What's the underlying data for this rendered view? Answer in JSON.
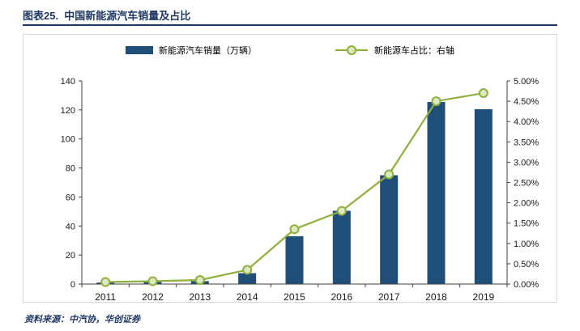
{
  "header": {
    "title": "图表25.  中国新能源汽车销量及占比"
  },
  "legend": {
    "items": [
      {
        "label": "新能源汽车销量（万辆）",
        "type": "bar",
        "color": "#1F4E79"
      },
      {
        "label": "新能源车占比：右轴",
        "type": "line",
        "color": "#8FB03A"
      }
    ]
  },
  "chart_data": {
    "type": "bar",
    "subtype": "bar+line-dual-axis",
    "categories": [
      "2011",
      "2012",
      "2013",
      "2014",
      "2015",
      "2016",
      "2017",
      "2018",
      "2019"
    ],
    "series": [
      {
        "name": "新能源汽车销量（万辆）",
        "type": "bar",
        "axis": "left",
        "color": "#1F4E79",
        "values": [
          1,
          1.5,
          2,
          7.5,
          33,
          50.5,
          75,
          125.5,
          120.5
        ]
      },
      {
        "name": "新能源车占比：右轴",
        "type": "line",
        "axis": "right",
        "color": "#8FB03A",
        "values": [
          0.05,
          0.07,
          0.1,
          0.35,
          1.35,
          1.8,
          2.7,
          4.5,
          4.7
        ]
      }
    ],
    "left_axis": {
      "min": 0,
      "max": 140,
      "step": 20
    },
    "right_axis": {
      "min": 0,
      "max": 5,
      "step": 0.5,
      "format": "percent2"
    },
    "right_axis_tick_labels": [
      "0.00%",
      "0.50%",
      "1.00%",
      "1.50%",
      "2.00%",
      "2.50%",
      "3.00%",
      "3.50%",
      "4.00%",
      "4.50%",
      "5.00%"
    ],
    "marker_fill": "#DCE8C2",
    "grid": false,
    "legend_position": "top"
  },
  "source": {
    "text": "资料来源：中汽协，华创证券"
  }
}
